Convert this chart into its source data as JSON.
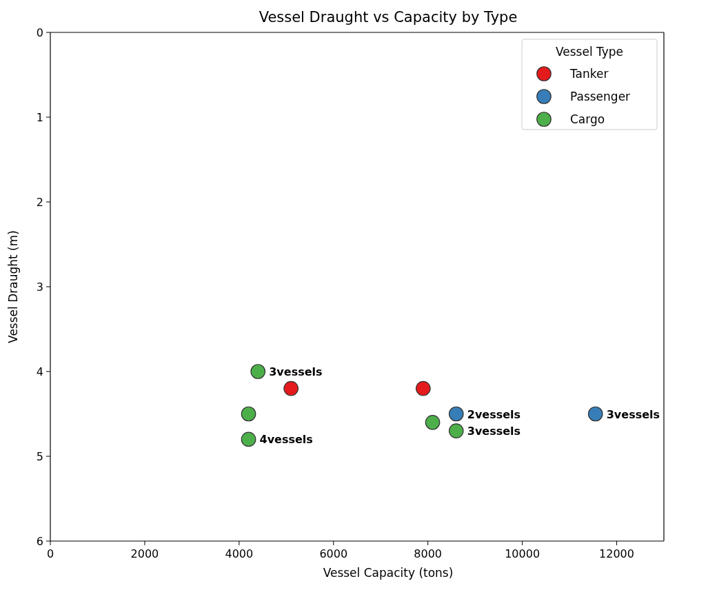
{
  "chart_data": {
    "type": "scatter",
    "title": "Vessel Draught vs Capacity by Type",
    "xlabel": "Vessel Capacity (tons)",
    "ylabel": "Vessel Draught (m)",
    "legend_title": "Vessel Type",
    "series": [
      {
        "name": "Tanker",
        "color": "#e41a1c",
        "x": [
          5100,
          7900
        ],
        "values": [
          4.2,
          4.2
        ]
      },
      {
        "name": "Passenger",
        "color": "#377eb8",
        "x": [
          8600,
          11550
        ],
        "values": [
          4.5,
          4.5
        ]
      },
      {
        "name": "Cargo",
        "color": "#4daf4a",
        "x": [
          4400,
          4200,
          4200,
          8100,
          8600
        ],
        "values": [
          4.0,
          4.5,
          4.8,
          4.6,
          4.7
        ]
      }
    ],
    "annotations": [
      {
        "text": "3vessels",
        "x": 4400,
        "y": 4.0
      },
      {
        "text": "4vessels",
        "x": 4200,
        "y": 4.8
      },
      {
        "text": "2vessels",
        "x": 8600,
        "y": 4.5
      },
      {
        "text": "3vessels",
        "x": 8600,
        "y": 4.7
      },
      {
        "text": "3vessels",
        "x": 11550,
        "y": 4.5
      }
    ],
    "xlim": [
      0,
      13000
    ],
    "ylim": [
      6,
      0
    ],
    "xticks": [
      0,
      2000,
      4000,
      6000,
      8000,
      10000,
      12000
    ],
    "yticks": [
      0,
      1,
      2,
      3,
      4,
      5,
      6
    ],
    "legend": "top right",
    "marker": "circle",
    "grid": false
  }
}
